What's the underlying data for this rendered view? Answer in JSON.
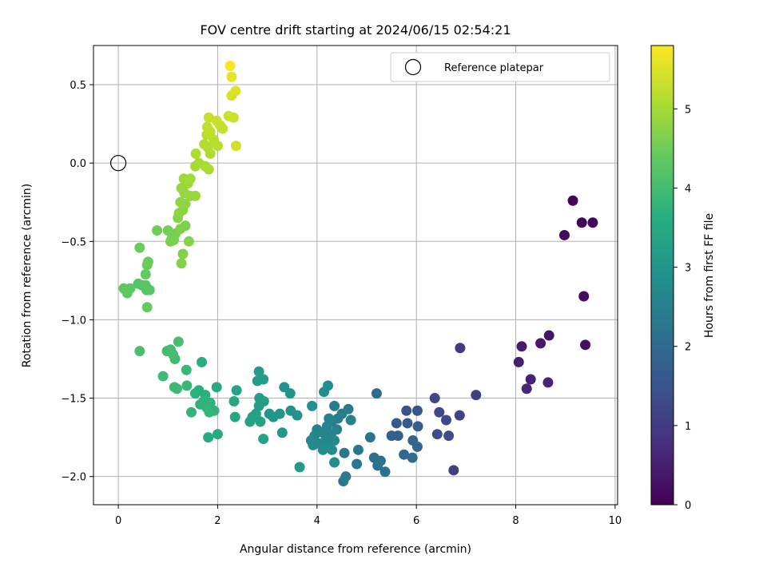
{
  "chart_data": {
    "type": "scatter",
    "title": "FOV centre drift starting at 2024/06/15 02:54:21",
    "xlabel": "Angular distance from reference (arcmin)",
    "ylabel": "Rotation from reference (arcmin)",
    "xlim": [
      -0.5,
      10.05
    ],
    "ylim": [
      -2.18,
      0.75
    ],
    "xticks": [
      0,
      2,
      4,
      6,
      8,
      10
    ],
    "xtick_labels": [
      "0",
      "2",
      "4",
      "6",
      "8",
      "10"
    ],
    "yticks": [
      0.5,
      0.0,
      -0.5,
      -1.0,
      -1.5,
      -2.0
    ],
    "ytick_labels": [
      "0.5",
      "0.0",
      "−0.5",
      "−1.0",
      "−1.5",
      "−2.0"
    ],
    "grid": true,
    "legend": {
      "position": "top-right",
      "entries": [
        {
          "label": "Reference platepar",
          "marker": "open-circle"
        }
      ]
    },
    "reference_point": {
      "x": 0.0,
      "y": 0.0
    },
    "colormap": "viridis",
    "colorbar": {
      "label": "Hours from first FF file",
      "range": [
        0,
        5.8
      ],
      "ticks": [
        0,
        1,
        2,
        3,
        4,
        5
      ],
      "tick_labels": [
        "0",
        "1",
        "2",
        "3",
        "4",
        "5"
      ]
    },
    "points": [
      {
        "x": 9.15,
        "y": -0.24,
        "c": 0.05
      },
      {
        "x": 9.33,
        "y": -0.38,
        "c": 0.08
      },
      {
        "x": 9.55,
        "y": -0.38,
        "c": 0.1
      },
      {
        "x": 8.98,
        "y": -0.46,
        "c": 0.15
      },
      {
        "x": 9.37,
        "y": -0.85,
        "c": 0.2
      },
      {
        "x": 9.4,
        "y": -1.16,
        "c": 0.25
      },
      {
        "x": 8.67,
        "y": -1.1,
        "c": 0.35
      },
      {
        "x": 8.5,
        "y": -1.15,
        "c": 0.4
      },
      {
        "x": 8.12,
        "y": -1.17,
        "c": 0.45
      },
      {
        "x": 8.06,
        "y": -1.27,
        "c": 0.5
      },
      {
        "x": 8.3,
        "y": -1.38,
        "c": 0.55
      },
      {
        "x": 8.65,
        "y": -1.4,
        "c": 0.6
      },
      {
        "x": 8.22,
        "y": -1.44,
        "c": 0.65
      },
      {
        "x": 6.88,
        "y": -1.18,
        "c": 1.0
      },
      {
        "x": 7.2,
        "y": -1.48,
        "c": 1.05
      },
      {
        "x": 6.75,
        "y": -1.96,
        "c": 1.1
      },
      {
        "x": 6.87,
        "y": -1.61,
        "c": 1.15
      },
      {
        "x": 6.37,
        "y": -1.5,
        "c": 1.2
      },
      {
        "x": 6.46,
        "y": -1.59,
        "c": 1.25
      },
      {
        "x": 6.6,
        "y": -1.64,
        "c": 1.3
      },
      {
        "x": 6.42,
        "y": -1.73,
        "c": 1.35
      },
      {
        "x": 6.65,
        "y": -1.74,
        "c": 1.4
      },
      {
        "x": 5.8,
        "y": -1.58,
        "c": 1.5
      },
      {
        "x": 6.02,
        "y": -1.58,
        "c": 1.55
      },
      {
        "x": 5.6,
        "y": -1.66,
        "c": 1.6
      },
      {
        "x": 5.82,
        "y": -1.66,
        "c": 1.65
      },
      {
        "x": 6.03,
        "y": -1.68,
        "c": 1.7
      },
      {
        "x": 5.5,
        "y": -1.74,
        "c": 1.75
      },
      {
        "x": 5.63,
        "y": -1.74,
        "c": 1.8
      },
      {
        "x": 5.93,
        "y": -1.77,
        "c": 1.85
      },
      {
        "x": 6.02,
        "y": -1.81,
        "c": 1.9
      },
      {
        "x": 5.75,
        "y": -1.86,
        "c": 1.95
      },
      {
        "x": 5.92,
        "y": -1.88,
        "c": 2.0
      },
      {
        "x": 5.2,
        "y": -1.47,
        "c": 2.05
      },
      {
        "x": 5.15,
        "y": -1.88,
        "c": 2.1
      },
      {
        "x": 5.28,
        "y": -1.9,
        "c": 2.12
      },
      {
        "x": 5.22,
        "y": -1.93,
        "c": 2.15
      },
      {
        "x": 5.37,
        "y": -1.97,
        "c": 2.18
      },
      {
        "x": 5.07,
        "y": -1.75,
        "c": 2.2
      },
      {
        "x": 4.83,
        "y": -1.83,
        "c": 2.25
      },
      {
        "x": 4.8,
        "y": -1.92,
        "c": 2.28
      },
      {
        "x": 4.55,
        "y": -1.85,
        "c": 2.3
      },
      {
        "x": 4.58,
        "y": -2.0,
        "c": 2.33
      },
      {
        "x": 4.53,
        "y": -2.03,
        "c": 2.35
      },
      {
        "x": 4.35,
        "y": -1.55,
        "c": 2.4
      },
      {
        "x": 4.63,
        "y": -1.57,
        "c": 2.42
      },
      {
        "x": 4.5,
        "y": -1.6,
        "c": 2.44
      },
      {
        "x": 4.42,
        "y": -1.63,
        "c": 2.46
      },
      {
        "x": 4.24,
        "y": -1.63,
        "c": 2.48
      },
      {
        "x": 4.68,
        "y": -1.64,
        "c": 2.5
      },
      {
        "x": 4.3,
        "y": -1.65,
        "c": 2.52
      },
      {
        "x": 4.2,
        "y": -1.68,
        "c": 2.54
      },
      {
        "x": 4.4,
        "y": -1.7,
        "c": 2.56
      },
      {
        "x": 4.0,
        "y": -1.7,
        "c": 2.58
      },
      {
        "x": 4.12,
        "y": -1.72,
        "c": 2.6
      },
      {
        "x": 4.28,
        "y": -1.73,
        "c": 2.62
      },
      {
        "x": 3.95,
        "y": -1.74,
        "c": 2.64
      },
      {
        "x": 4.18,
        "y": -1.76,
        "c": 2.66
      },
      {
        "x": 4.35,
        "y": -1.77,
        "c": 2.68
      },
      {
        "x": 3.88,
        "y": -1.77,
        "c": 2.7
      },
      {
        "x": 4.05,
        "y": -1.79,
        "c": 2.72
      },
      {
        "x": 4.23,
        "y": -1.8,
        "c": 2.74
      },
      {
        "x": 3.92,
        "y": -1.8,
        "c": 2.76
      },
      {
        "x": 4.12,
        "y": -1.83,
        "c": 2.78
      },
      {
        "x": 4.3,
        "y": -1.83,
        "c": 2.8
      },
      {
        "x": 4.35,
        "y": -1.91,
        "c": 2.82
      },
      {
        "x": 4.22,
        "y": -1.42,
        "c": 2.85
      },
      {
        "x": 4.14,
        "y": -1.46,
        "c": 2.87
      },
      {
        "x": 3.9,
        "y": -1.55,
        "c": 2.9
      },
      {
        "x": 3.6,
        "y": -1.61,
        "c": 2.93
      },
      {
        "x": 3.47,
        "y": -1.58,
        "c": 2.95
      },
      {
        "x": 3.34,
        "y": -1.43,
        "c": 2.97
      },
      {
        "x": 3.46,
        "y": -1.47,
        "c": 2.99
      },
      {
        "x": 3.25,
        "y": -1.6,
        "c": 3.01
      },
      {
        "x": 3.12,
        "y": -1.62,
        "c": 3.03
      },
      {
        "x": 3.04,
        "y": -1.6,
        "c": 3.05
      },
      {
        "x": 3.3,
        "y": -1.72,
        "c": 3.07
      },
      {
        "x": 3.65,
        "y": -1.94,
        "c": 3.1
      },
      {
        "x": 2.83,
        "y": -1.33,
        "c": 3.15
      },
      {
        "x": 2.8,
        "y": -1.39,
        "c": 3.17
      },
      {
        "x": 2.92,
        "y": -1.38,
        "c": 3.19
      },
      {
        "x": 2.84,
        "y": -1.5,
        "c": 3.21
      },
      {
        "x": 2.93,
        "y": -1.52,
        "c": 3.23
      },
      {
        "x": 2.83,
        "y": -1.55,
        "c": 3.25
      },
      {
        "x": 2.77,
        "y": -1.6,
        "c": 3.27
      },
      {
        "x": 2.7,
        "y": -1.62,
        "c": 3.29
      },
      {
        "x": 2.65,
        "y": -1.65,
        "c": 3.31
      },
      {
        "x": 2.86,
        "y": -1.65,
        "c": 3.33
      },
      {
        "x": 2.92,
        "y": -1.76,
        "c": 3.36
      },
      {
        "x": 2.38,
        "y": -1.45,
        "c": 3.4
      },
      {
        "x": 2.33,
        "y": -1.52,
        "c": 3.43
      },
      {
        "x": 2.35,
        "y": -1.62,
        "c": 3.46
      },
      {
        "x": 1.98,
        "y": -1.43,
        "c": 3.5
      },
      {
        "x": 2.0,
        "y": -1.73,
        "c": 3.53
      },
      {
        "x": 1.81,
        "y": -1.75,
        "c": 3.56
      },
      {
        "x": 1.68,
        "y": -1.27,
        "c": 3.6
      },
      {
        "x": 1.62,
        "y": -1.45,
        "c": 3.63
      },
      {
        "x": 1.75,
        "y": -1.48,
        "c": 3.65
      },
      {
        "x": 1.55,
        "y": -1.47,
        "c": 3.67
      },
      {
        "x": 1.72,
        "y": -1.52,
        "c": 3.69
      },
      {
        "x": 1.85,
        "y": -1.53,
        "c": 3.71
      },
      {
        "x": 1.65,
        "y": -1.54,
        "c": 3.73
      },
      {
        "x": 1.78,
        "y": -1.56,
        "c": 3.75
      },
      {
        "x": 1.93,
        "y": -1.58,
        "c": 3.77
      },
      {
        "x": 1.47,
        "y": -1.59,
        "c": 3.79
      },
      {
        "x": 1.83,
        "y": -1.59,
        "c": 3.81
      },
      {
        "x": 1.38,
        "y": -1.42,
        "c": 3.83
      },
      {
        "x": 1.37,
        "y": -1.32,
        "c": 3.86
      },
      {
        "x": 1.13,
        "y": -1.43,
        "c": 3.89
      },
      {
        "x": 1.18,
        "y": -1.44,
        "c": 3.91
      },
      {
        "x": 0.9,
        "y": -1.36,
        "c": 3.94
      },
      {
        "x": 1.14,
        "y": -1.25,
        "c": 3.97
      },
      {
        "x": 0.98,
        "y": -1.2,
        "c": 4.0
      },
      {
        "x": 1.05,
        "y": -1.19,
        "c": 4.02
      },
      {
        "x": 1.1,
        "y": -1.22,
        "c": 4.04
      },
      {
        "x": 1.21,
        "y": -1.14,
        "c": 4.06
      },
      {
        "x": 0.43,
        "y": -1.2,
        "c": 4.08
      },
      {
        "x": 0.57,
        "y": -0.81,
        "c": 4.2
      },
      {
        "x": 0.48,
        "y": -0.78,
        "c": 4.22
      },
      {
        "x": 0.4,
        "y": -0.77,
        "c": 4.24
      },
      {
        "x": 0.55,
        "y": -0.78,
        "c": 4.26
      },
      {
        "x": 0.63,
        "y": -0.81,
        "c": 4.28
      },
      {
        "x": 0.15,
        "y": -0.81,
        "c": 4.3
      },
      {
        "x": 0.18,
        "y": -0.83,
        "c": 4.32
      },
      {
        "x": 0.24,
        "y": -0.8,
        "c": 4.34
      },
      {
        "x": 0.11,
        "y": -0.8,
        "c": 4.36
      },
      {
        "x": 0.55,
        "y": -0.71,
        "c": 4.38
      },
      {
        "x": 0.58,
        "y": -0.92,
        "c": 4.4
      },
      {
        "x": 0.6,
        "y": -0.63,
        "c": 4.42
      },
      {
        "x": 0.58,
        "y": -0.65,
        "c": 4.44
      },
      {
        "x": 0.43,
        "y": -0.54,
        "c": 4.46
      },
      {
        "x": 0.78,
        "y": -0.43,
        "c": 4.5
      },
      {
        "x": 1.0,
        "y": -0.43,
        "c": 4.53
      },
      {
        "x": 1.08,
        "y": -0.48,
        "c": 4.55
      },
      {
        "x": 1.15,
        "y": -0.45,
        "c": 4.57
      },
      {
        "x": 1.05,
        "y": -0.5,
        "c": 4.59
      },
      {
        "x": 1.12,
        "y": -0.49,
        "c": 4.61
      },
      {
        "x": 1.35,
        "y": -0.4,
        "c": 4.63
      },
      {
        "x": 1.25,
        "y": -0.42,
        "c": 4.65
      },
      {
        "x": 1.3,
        "y": -0.58,
        "c": 4.67
      },
      {
        "x": 1.27,
        "y": -0.64,
        "c": 4.69
      },
      {
        "x": 1.42,
        "y": -0.5,
        "c": 4.71
      },
      {
        "x": 1.2,
        "y": -0.35,
        "c": 4.74
      },
      {
        "x": 1.22,
        "y": -0.32,
        "c": 4.76
      },
      {
        "x": 1.3,
        "y": -0.3,
        "c": 4.78
      },
      {
        "x": 1.35,
        "y": -0.26,
        "c": 4.8
      },
      {
        "x": 1.25,
        "y": -0.25,
        "c": 4.82
      },
      {
        "x": 1.33,
        "y": -0.19,
        "c": 4.84
      },
      {
        "x": 1.27,
        "y": -0.16,
        "c": 4.86
      },
      {
        "x": 1.45,
        "y": -0.21,
        "c": 4.88
      },
      {
        "x": 1.55,
        "y": -0.21,
        "c": 4.9
      },
      {
        "x": 1.4,
        "y": -0.13,
        "c": 4.92
      },
      {
        "x": 1.32,
        "y": -0.1,
        "c": 4.94
      },
      {
        "x": 1.45,
        "y": -0.1,
        "c": 4.96
      },
      {
        "x": 1.55,
        "y": -0.02,
        "c": 5.0
      },
      {
        "x": 1.62,
        "y": 0.0,
        "c": 5.02
      },
      {
        "x": 1.75,
        "y": -0.02,
        "c": 5.04
      },
      {
        "x": 1.82,
        "y": -0.04,
        "c": 5.06
      },
      {
        "x": 1.56,
        "y": 0.06,
        "c": 5.08
      },
      {
        "x": 1.85,
        "y": 0.06,
        "c": 5.1
      },
      {
        "x": 1.73,
        "y": 0.12,
        "c": 5.12
      },
      {
        "x": 1.8,
        "y": 0.1,
        "c": 5.14
      },
      {
        "x": 2.0,
        "y": 0.11,
        "c": 5.16
      },
      {
        "x": 1.92,
        "y": 0.15,
        "c": 5.18
      },
      {
        "x": 1.78,
        "y": 0.18,
        "c": 5.2
      },
      {
        "x": 1.85,
        "y": 0.2,
        "c": 5.22
      },
      {
        "x": 1.79,
        "y": 0.23,
        "c": 5.24
      },
      {
        "x": 2.05,
        "y": 0.24,
        "c": 5.26
      },
      {
        "x": 2.1,
        "y": 0.22,
        "c": 5.28
      },
      {
        "x": 1.82,
        "y": 0.29,
        "c": 5.3
      },
      {
        "x": 1.98,
        "y": 0.27,
        "c": 5.32
      },
      {
        "x": 2.22,
        "y": 0.3,
        "c": 5.34
      },
      {
        "x": 2.32,
        "y": 0.29,
        "c": 5.36
      },
      {
        "x": 2.37,
        "y": 0.11,
        "c": 5.38
      },
      {
        "x": 2.28,
        "y": 0.43,
        "c": 5.45
      },
      {
        "x": 2.36,
        "y": 0.46,
        "c": 5.5
      },
      {
        "x": 2.28,
        "y": 0.55,
        "c": 5.6
      },
      {
        "x": 2.25,
        "y": 0.62,
        "c": 5.75
      }
    ]
  }
}
